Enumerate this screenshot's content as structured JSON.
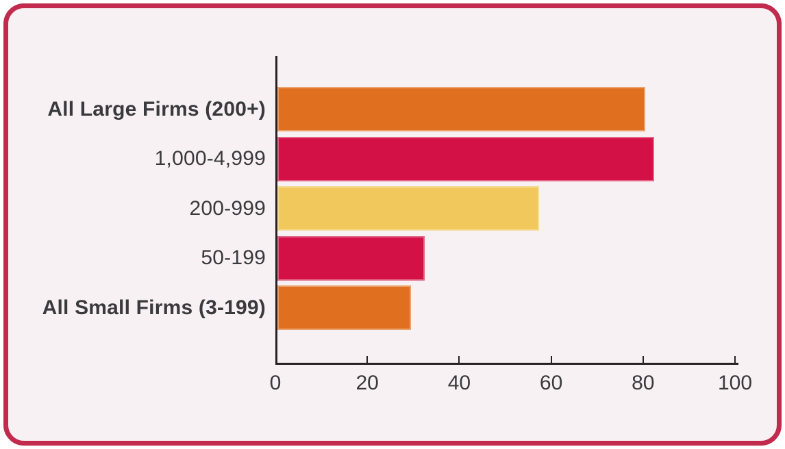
{
  "chart_data": {
    "type": "bar",
    "orientation": "horizontal",
    "title": "",
    "categories": [
      "All Large Firms (200+)",
      "1,000-4,999",
      "200-999",
      "50-199",
      "All Small Firms (3-199)"
    ],
    "values": [
      80,
      82,
      57,
      32,
      29
    ],
    "bar_colors": [
      "#e0701f",
      "#d31147",
      "#f0c85c",
      "#d31147",
      "#e0701f"
    ],
    "category_bold": [
      true,
      false,
      false,
      false,
      true
    ],
    "xlabel": "",
    "ylabel": "",
    "xlim": [
      0,
      100
    ],
    "xticks": [
      0,
      20,
      40,
      60,
      80,
      100
    ],
    "tick_labels": [
      "0",
      "20",
      "40",
      "60",
      "80",
      "100"
    ],
    "grid": false,
    "legend": null
  },
  "frame": {
    "border_color": "#c22b4d",
    "background_color": "#f8f1f3",
    "outer_background": "#ffffff"
  },
  "axis": {
    "line_color": "#262223",
    "text_color": "#3a3a3c"
  }
}
